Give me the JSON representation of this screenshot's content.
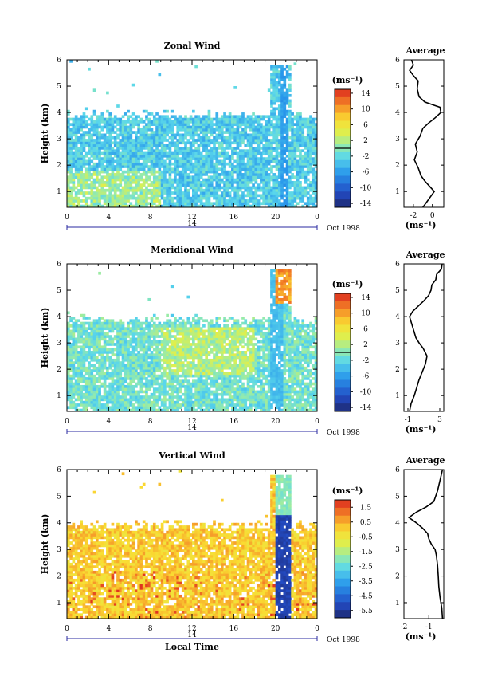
{
  "chart_data": [
    {
      "id": "zonal",
      "type": "heatmap",
      "title": "Zonal Wind",
      "ylabel": "Height (km)",
      "xlabel": "",
      "xlim": [
        0,
        24
      ],
      "ylim": [
        0.4,
        6
      ],
      "xticks": [
        "0",
        "4",
        "8",
        "12",
        "16",
        "20",
        "0"
      ],
      "yticks": [
        "1",
        "2",
        "3",
        "4",
        "5",
        "6"
      ],
      "date_bar": {
        "day": "14",
        "month_year": "Oct 1998"
      },
      "colorbar": {
        "unit": "(ms⁻¹)",
        "min": -15,
        "max": 15,
        "ticks": [
          "14",
          "10",
          "6",
          "2",
          "-2",
          "-6",
          "-10",
          "-14"
        ],
        "tick_values": [
          14,
          10,
          6,
          2,
          -2,
          -6,
          -10,
          -14
        ]
      },
      "average": {
        "title": "Average",
        "unit": "(ms⁻¹)",
        "xlim": [
          -3,
          1.2
        ],
        "xticks": [
          "-2",
          "0"
        ],
        "xtick_values": [
          -2,
          0
        ],
        "yticks": [
          "1",
          "2",
          "3",
          "4",
          "5",
          "6"
        ],
        "profile": [
          [
            -1.0,
            0.4
          ],
          [
            -0.6,
            0.6
          ],
          [
            -0.2,
            0.8
          ],
          [
            0.2,
            1.0
          ],
          [
            -0.3,
            1.2
          ],
          [
            -0.8,
            1.4
          ],
          [
            -1.2,
            1.6
          ],
          [
            -1.5,
            1.9
          ],
          [
            -1.9,
            2.2
          ],
          [
            -1.6,
            2.5
          ],
          [
            -1.8,
            2.8
          ],
          [
            -1.3,
            3.1
          ],
          [
            -1.0,
            3.4
          ],
          [
            -0.4,
            3.6
          ],
          [
            0.3,
            3.8
          ],
          [
            0.9,
            4.0
          ],
          [
            0.8,
            4.2
          ],
          [
            0.0,
            4.3
          ],
          [
            -0.8,
            4.4
          ],
          [
            -1.4,
            4.6
          ],
          [
            -1.6,
            4.9
          ],
          [
            -1.5,
            5.2
          ],
          [
            -2.0,
            5.4
          ],
          [
            -2.4,
            5.6
          ],
          [
            -2.0,
            5.8
          ],
          [
            -2.2,
            6.0
          ]
        ]
      }
    },
    {
      "id": "meridional",
      "type": "heatmap",
      "title": "Meridional Wind",
      "ylabel": "Height (km)",
      "xlabel": "",
      "xlim": [
        0,
        24
      ],
      "ylim": [
        0.4,
        6
      ],
      "xticks": [
        "0",
        "4",
        "8",
        "12",
        "16",
        "20",
        "0"
      ],
      "yticks": [
        "1",
        "2",
        "3",
        "4",
        "5",
        "6"
      ],
      "date_bar": {
        "day": "14",
        "month_year": "Oct 1998"
      },
      "colorbar": {
        "unit": "(ms⁻¹)",
        "min": -15,
        "max": 15,
        "ticks": [
          "14",
          "10",
          "6",
          "2",
          "-2",
          "-6",
          "-10",
          "-14"
        ],
        "tick_values": [
          14,
          10,
          6,
          2,
          -2,
          -6,
          -10,
          -14
        ]
      },
      "average": {
        "title": "Average",
        "unit": "(ms⁻¹)",
        "xlim": [
          -1.5,
          3.5
        ],
        "xticks": [
          "-1",
          "3"
        ],
        "xtick_values": [
          -1,
          3
        ],
        "yticks": [
          "1",
          "2",
          "3",
          "4",
          "5",
          "6"
        ],
        "profile": [
          [
            -0.8,
            0.4
          ],
          [
            -0.6,
            0.7
          ],
          [
            -0.2,
            1.0
          ],
          [
            0.1,
            1.3
          ],
          [
            0.4,
            1.6
          ],
          [
            0.8,
            1.9
          ],
          [
            1.2,
            2.2
          ],
          [
            1.4,
            2.5
          ],
          [
            0.9,
            2.8
          ],
          [
            0.4,
            3.0
          ],
          [
            0.0,
            3.2
          ],
          [
            -0.3,
            3.5
          ],
          [
            -0.6,
            3.8
          ],
          [
            -0.8,
            4.0
          ],
          [
            -0.4,
            4.2
          ],
          [
            0.3,
            4.4
          ],
          [
            1.0,
            4.6
          ],
          [
            1.6,
            4.8
          ],
          [
            1.9,
            5.0
          ],
          [
            2.0,
            5.2
          ],
          [
            2.5,
            5.4
          ],
          [
            2.6,
            5.6
          ],
          [
            3.2,
            5.8
          ],
          [
            3.3,
            6.0
          ]
        ]
      }
    },
    {
      "id": "vertical",
      "type": "heatmap",
      "title": "Vertical Wind",
      "ylabel": "Height (km)",
      "xlabel": "Local Time",
      "xlim": [
        0,
        24
      ],
      "ylim": [
        0.4,
        6
      ],
      "xticks": [
        "0",
        "4",
        "8",
        "12",
        "16",
        "20",
        "0"
      ],
      "yticks": [
        "1",
        "2",
        "3",
        "4",
        "5",
        "6"
      ],
      "date_bar": {
        "day": "14",
        "month_year": "Oct 1998"
      },
      "colorbar": {
        "unit": "(ms⁻¹)",
        "min": -6.0,
        "max": 2.0,
        "ticks": [
          "1.5",
          "0.5",
          "-0.5",
          "-1.5",
          "-2.5",
          "-3.5",
          "-4.5",
          "-5.5"
        ],
        "tick_values": [
          1.5,
          0.5,
          -0.5,
          -1.5,
          -2.5,
          -3.5,
          -4.5,
          -5.5
        ]
      },
      "average": {
        "title": "Average",
        "unit": "(ms⁻¹)",
        "xlim": [
          -2,
          -0.4
        ],
        "xticks": [
          "-2",
          "-1"
        ],
        "xtick_values": [
          -2,
          -1
        ],
        "yticks": [
          "1",
          "2",
          "3",
          "4",
          "5",
          "6"
        ],
        "profile": [
          [
            -0.45,
            0.4
          ],
          [
            -0.48,
            0.8
          ],
          [
            -0.55,
            1.2
          ],
          [
            -0.6,
            1.6
          ],
          [
            -0.62,
            2.0
          ],
          [
            -0.65,
            2.4
          ],
          [
            -0.7,
            2.8
          ],
          [
            -0.75,
            3.0
          ],
          [
            -0.9,
            3.2
          ],
          [
            -1.0,
            3.4
          ],
          [
            -1.05,
            3.6
          ],
          [
            -1.25,
            3.8
          ],
          [
            -1.5,
            4.0
          ],
          [
            -1.8,
            4.2
          ],
          [
            -1.5,
            4.4
          ],
          [
            -1.1,
            4.6
          ],
          [
            -0.8,
            4.8
          ],
          [
            -0.65,
            5.2
          ],
          [
            -0.55,
            5.6
          ],
          [
            -0.45,
            6.0
          ]
        ]
      }
    }
  ]
}
